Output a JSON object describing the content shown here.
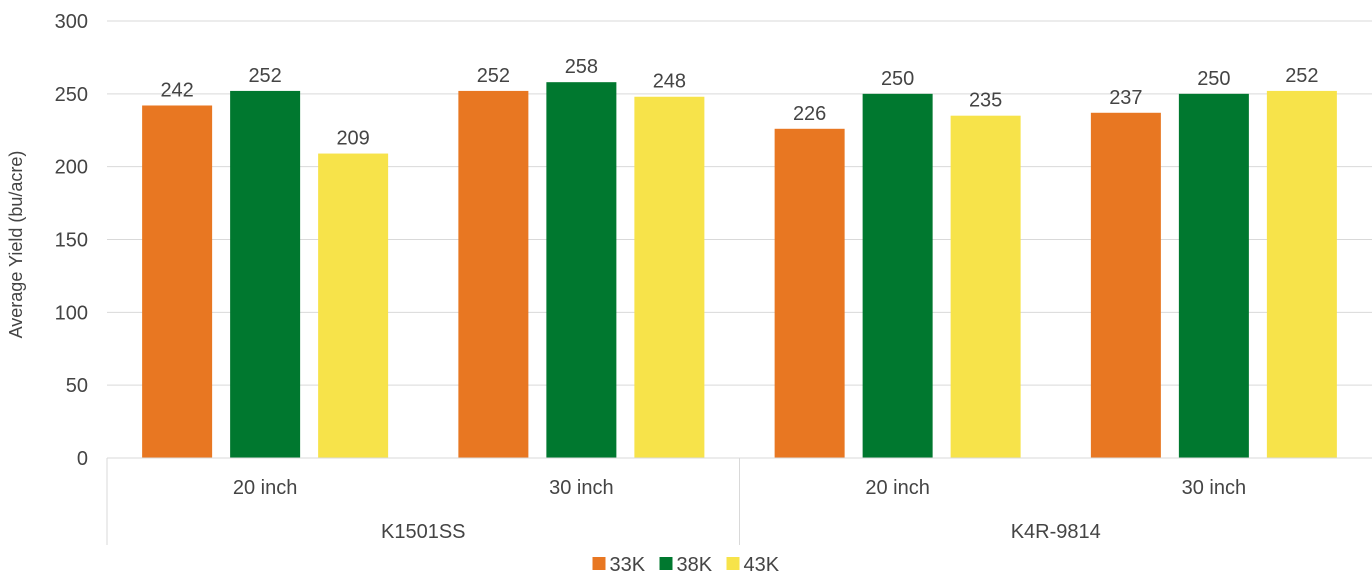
{
  "chart_data": {
    "type": "bar",
    "title": "",
    "xlabel": "",
    "ylabel": "Average Yield (bu/acre)",
    "ylim": [
      0,
      300
    ],
    "yticks": [
      0,
      50,
      100,
      150,
      200,
      250,
      300
    ],
    "grid": true,
    "legend_position": "bottom",
    "groups": [
      {
        "label": "K1501SS",
        "categories": [
          "20 inch",
          "30 inch"
        ]
      },
      {
        "label": "K4R-9814",
        "categories": [
          "20 inch",
          "30 inch"
        ]
      }
    ],
    "series": [
      {
        "name": "33K",
        "color": "#E87722",
        "values": [
          242,
          252,
          226,
          237
        ]
      },
      {
        "name": "38K",
        "color": "#00782F",
        "values": [
          252,
          258,
          250,
          250
        ]
      },
      {
        "name": "43K",
        "color": "#F7E34A",
        "values": [
          209,
          248,
          235,
          252
        ]
      }
    ]
  }
}
